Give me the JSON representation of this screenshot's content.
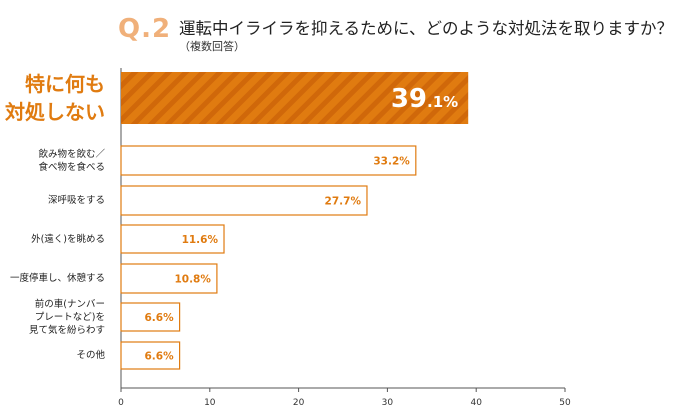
{
  "header": {
    "qnum": "Q.2",
    "title": "運転中イライラを抑えるために、どのような対処法を取りますか？",
    "subtitle": "（複数回答）"
  },
  "colors": {
    "accent": "#e07b10",
    "qnum": "#f0b07a",
    "axis": "#555555"
  },
  "chart_data": {
    "type": "bar",
    "orientation": "horizontal",
    "categories": [
      "特に何も\n対処しない",
      "飲み物を飲む／\n食べ物を食べる",
      "深呼吸をする",
      "外(遠く)を眺める",
      "一度停車し、休憩する",
      "前の車(ナンバー\nプレートなど)を\n見て気を紛らわす",
      "その他"
    ],
    "values": [
      39.1,
      33.2,
      27.7,
      11.6,
      10.8,
      6.6,
      6.6
    ],
    "value_labels": [
      "39.1%",
      "33.2%",
      "27.7%",
      "11.6%",
      "10.8%",
      "6.6%",
      "6.6%"
    ],
    "highlight_index": 0,
    "xlim": [
      0,
      50
    ],
    "xticks": [
      0,
      10,
      20,
      30,
      40,
      50
    ],
    "grid": false
  }
}
